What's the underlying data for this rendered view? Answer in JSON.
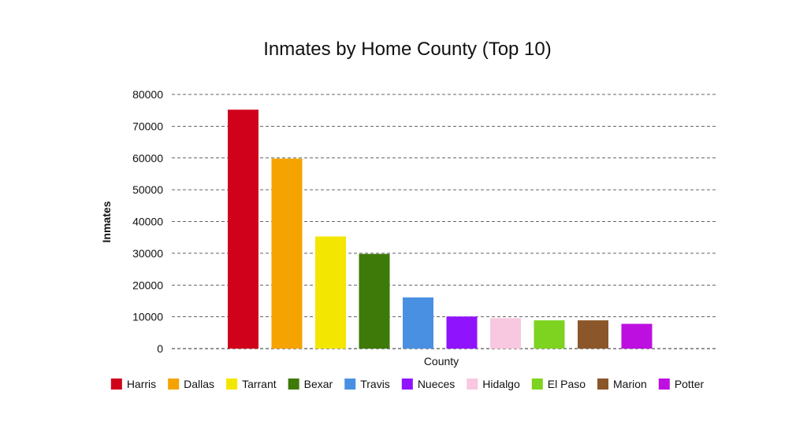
{
  "chart_data": {
    "type": "bar",
    "title": "Inmates by Home County (Top 10)",
    "xlabel": "County",
    "ylabel": "Inmates",
    "ylim": [
      0,
      80000
    ],
    "yticks": [
      0,
      10000,
      20000,
      30000,
      40000,
      50000,
      60000,
      70000,
      80000
    ],
    "ytick_labels": [
      "0",
      "10000",
      "20000",
      "30000",
      "40000",
      "50000",
      "60000",
      "70000",
      "80000"
    ],
    "grid": true,
    "legend_position": "bottom",
    "categories": [
      "Harris",
      "Dallas",
      "Tarrant",
      "Bexar",
      "Travis",
      "Nueces",
      "Hidalgo",
      "El Paso",
      "Marion",
      "Potter"
    ],
    "values": [
      75200,
      59800,
      35300,
      29800,
      16100,
      10100,
      9600,
      8900,
      8900,
      7800
    ],
    "colors": [
      "#d0021b",
      "#f5a300",
      "#f3e600",
      "#3e7a0a",
      "#4a90e2",
      "#9013fe",
      "#f8c8e0",
      "#7ed321",
      "#8b572a",
      "#bd10e0"
    ]
  }
}
